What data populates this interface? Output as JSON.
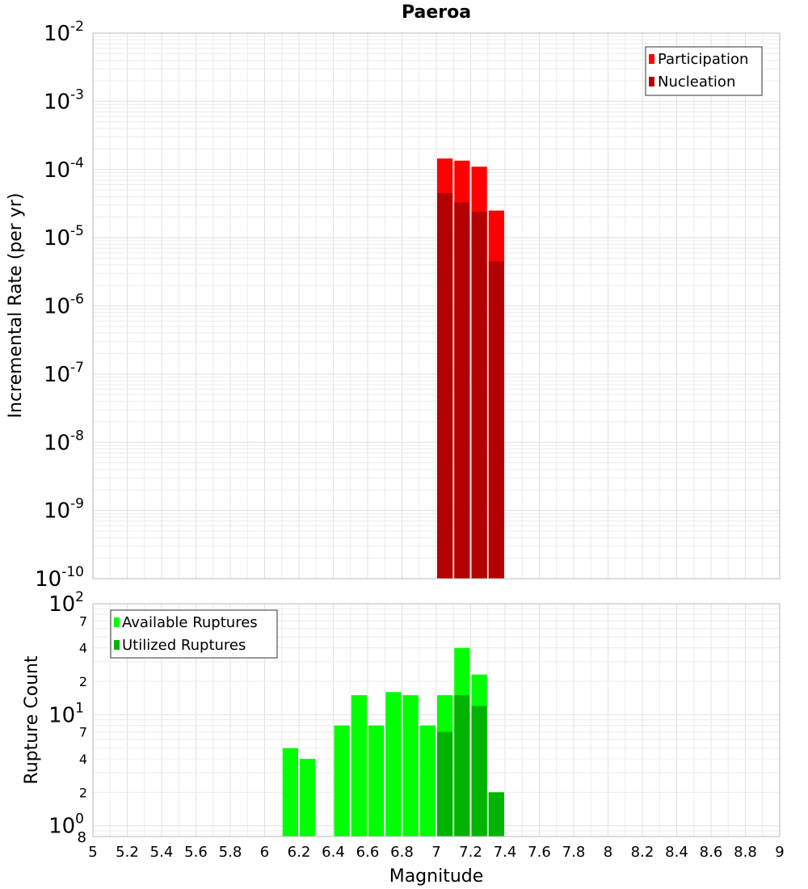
{
  "chart_data": [
    {
      "type": "bar",
      "title": "Paeroa",
      "xlabel": "Magnitude",
      "ylabel": "Incremental Rate (per yr)",
      "yscale": "log",
      "ylim": [
        1e-10,
        0.01
      ],
      "xlim": [
        5,
        9
      ],
      "y_ticks": [
        "10^-10",
        "10^-9",
        "10^-8",
        "10^-7",
        "10^-6",
        "10^-5",
        "10^-4",
        "10^-3",
        "10^-2"
      ],
      "bin_width": 0.1,
      "grid": true,
      "legend_position": "top-right",
      "x": [
        7.05,
        7.15,
        7.25,
        7.35
      ],
      "series": [
        {
          "name": "Participation",
          "color": "#ff0000",
          "values": [
            0.000145,
            0.000135,
            0.00011,
            2.5e-05
          ]
        },
        {
          "name": "Nucleation",
          "color": "#b30000",
          "values": [
            4.5e-05,
            3.3e-05,
            2.4e-05,
            4.5e-06
          ]
        }
      ]
    },
    {
      "type": "bar",
      "xlabel": "Magnitude",
      "ylabel": "Rupture Count",
      "yscale": "log",
      "ylim": [
        0.8,
        100
      ],
      "xlim": [
        5,
        9
      ],
      "bin_width": 0.1,
      "grid": true,
      "legend_position": "top-left",
      "x_ticks": [
        "5",
        "5.2",
        "5.4",
        "5.6",
        "5.8",
        "6",
        "6.2",
        "6.4",
        "6.6",
        "6.8",
        "7",
        "7.2",
        "7.4",
        "7.6",
        "7.8",
        "8",
        "8.2",
        "8.4",
        "8.6",
        "8.8",
        "9"
      ],
      "x": [
        6.15,
        6.25,
        6.45,
        6.55,
        6.65,
        6.75,
        6.85,
        6.95,
        7.05,
        7.15,
        7.25,
        7.35
      ],
      "series": [
        {
          "name": "Available Ruptures",
          "color": "#00ff00",
          "values": [
            5,
            4,
            8,
            15,
            8,
            16,
            15,
            8,
            15,
            40,
            23,
            2
          ]
        },
        {
          "name": "Utilized Ruptures",
          "color": "#00b300",
          "values": [
            0,
            0,
            0,
            0,
            0,
            0,
            0,
            0,
            7,
            15,
            12,
            2
          ]
        }
      ]
    }
  ]
}
